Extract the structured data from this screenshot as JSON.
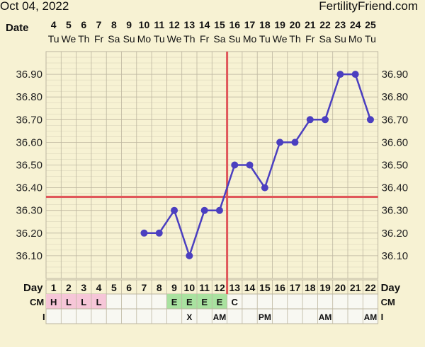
{
  "header": {
    "date": "Oct 04, 2022",
    "site": "FertilityFriend.com"
  },
  "chart_data": {
    "type": "line",
    "top_row_label": "Date",
    "bottom_row_label": "Day",
    "cm_label": "CM",
    "i_label": "I",
    "dates": [
      "4",
      "5",
      "6",
      "7",
      "8",
      "9",
      "10",
      "11",
      "12",
      "13",
      "14",
      "15",
      "16",
      "17",
      "18",
      "19",
      "20",
      "21",
      "22",
      "23",
      "24",
      "25"
    ],
    "weekdays": [
      "Tu",
      "We",
      "Th",
      "Fr",
      "Sa",
      "Su",
      "Mo",
      "Tu",
      "We",
      "Th",
      "Fr",
      "Sa",
      "Su",
      "Mo",
      "Tu",
      "We",
      "Th",
      "Fr",
      "Sa",
      "Su",
      "Mo",
      "Tu"
    ],
    "cycle_days": [
      "1",
      "2",
      "3",
      "4",
      "5",
      "6",
      "7",
      "8",
      "9",
      "10",
      "11",
      "12",
      "13",
      "14",
      "15",
      "16",
      "17",
      "18",
      "19",
      "20",
      "21",
      "22"
    ],
    "y_ticks": [
      "36.90",
      "36.80",
      "36.70",
      "36.60",
      "36.50",
      "36.40",
      "36.30",
      "36.20",
      "36.10"
    ],
    "ylim": [
      36.0,
      37.0
    ],
    "temperatures": [
      null,
      null,
      null,
      null,
      null,
      null,
      36.2,
      36.2,
      36.3,
      36.1,
      36.3,
      36.3,
      36.5,
      36.5,
      36.4,
      36.6,
      36.6,
      36.7,
      36.7,
      36.9,
      36.9,
      36.7
    ],
    "coverline": 36.36,
    "ovulation_day": 12,
    "cm": [
      "H",
      "L",
      "L",
      "L",
      "",
      "",
      "",
      "",
      "E",
      "E",
      "E",
      "E",
      "C",
      "",
      "",
      "",
      "",
      "",
      "",
      "",
      "",
      ""
    ],
    "cm_colors": {
      "H": "#f6c6d8",
      "L": "#f6c6d8",
      "E": "#a9e2a0"
    },
    "i_row": [
      "",
      "",
      "",
      "",
      "",
      "",
      "",
      "",
      "",
      "X",
      "",
      "AM",
      "",
      "",
      "PM",
      "",
      "",
      "",
      "AM",
      "",
      "",
      "AM"
    ],
    "line_color": "#4b3fc0",
    "ref_line_color": "#e0575a",
    "grid_color": "#bdb6a0",
    "background": "#f7f2d3"
  }
}
